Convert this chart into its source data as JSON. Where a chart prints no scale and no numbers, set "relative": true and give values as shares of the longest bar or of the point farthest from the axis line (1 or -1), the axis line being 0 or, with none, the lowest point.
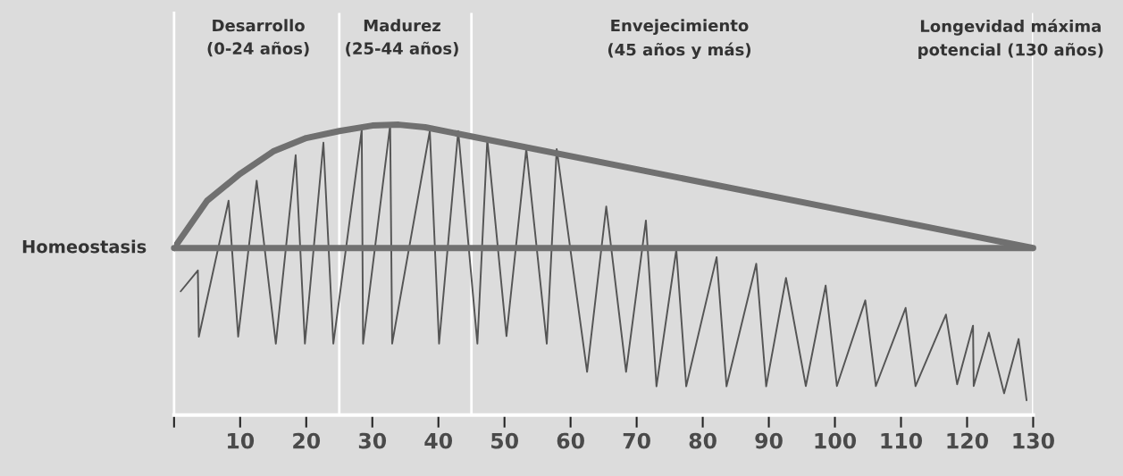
{
  "chart_data": {
    "type": "line",
    "relative": true,
    "annotations": [
      "Desarrollo\n(0-24 años)",
      "Madurez\n(25-44 años)",
      "Envejecimiento\n(45 años y más)",
      "Longevidad máxima\npotencial (130 años)"
    ],
    "xlim": [
      0,
      130
    ],
    "xticks": [
      {
        "value": 0,
        "label": null
      },
      10,
      20,
      30,
      40,
      50,
      60,
      70,
      80,
      90,
      100,
      110,
      120,
      130
    ],
    "series": [
      {
        "color": "#707070",
        "x": [
          0,
          5,
          10,
          15,
          20,
          25,
          30,
          34,
          38,
          130
        ],
        "values": [
          0.575,
          0.738,
          0.831,
          0.908,
          0.954,
          0.978,
          0.997,
          1.0,
          0.991,
          0.575
        ]
      },
      {
        "color": "#555555",
        "x": [
          1.0,
          3.6,
          3.75,
          8.25,
          9.7,
          12.5,
          15.4,
          18.4,
          19.8,
          22.6,
          24.1,
          28.4,
          28.6,
          32.7,
          33.0,
          38.7,
          40.1,
          43.0,
          45.9,
          47.4,
          50.3,
          53.3,
          56.4,
          57.9,
          62.5,
          65.4,
          68.4,
          71.4,
          73.0,
          76.0,
          77.5,
          82.1,
          83.6,
          88.1,
          89.6,
          92.6,
          95.6,
          98.6,
          100.3,
          104.6,
          106.2,
          110.7,
          112.2,
          116.8,
          118.5,
          120.9,
          121.0,
          123.3,
          125.6,
          127.8,
          129.0
        ],
        "values": [
          0.426,
          0.498,
          0.27,
          0.738,
          0.27,
          0.807,
          0.246,
          0.895,
          0.246,
          0.938,
          0.246,
          0.982,
          0.246,
          0.998,
          0.246,
          0.978,
          0.246,
          0.978,
          0.246,
          0.949,
          0.272,
          0.916,
          0.246,
          0.916,
          0.149,
          0.718,
          0.149,
          0.67,
          0.099,
          0.569,
          0.099,
          0.544,
          0.099,
          0.521,
          0.099,
          0.472,
          0.1,
          0.446,
          0.1,
          0.395,
          0.1,
          0.369,
          0.1,
          0.346,
          0.106,
          0.308,
          0.1,
          0.284,
          0.075,
          0.262,
          0.051
        ]
      }
    ],
    "ref_lines": [
      {
        "axis": "y",
        "value": 0.575,
        "label": "Homeostasis",
        "color": "#707070"
      },
      {
        "axis": "x",
        "value": 25,
        "label": null,
        "color": "#ffffff"
      },
      {
        "axis": "x",
        "value": 45,
        "label": null,
        "color": "#ffffff"
      },
      {
        "axis": "x",
        "value": 130,
        "label": null,
        "color": "#ffffff"
      }
    ],
    "grid": false,
    "legend": false,
    "marker": "none",
    "line_style": "solid"
  }
}
